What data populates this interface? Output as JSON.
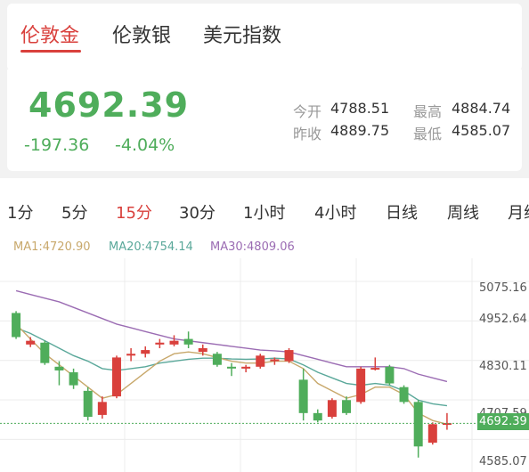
{
  "tabs": [
    {
      "label": "伦敦金",
      "active": true
    },
    {
      "label": "伦敦银",
      "active": false
    },
    {
      "label": "美元指数",
      "active": false
    }
  ],
  "quote": {
    "price": "4692.39",
    "change": "-197.36",
    "change_pct": "-4.04%",
    "open_label": "今开",
    "open": "4788.51",
    "prev_label": "昨收",
    "prev": "4889.75",
    "high_label": "最高",
    "high": "4884.74",
    "low_label": "最低",
    "low": "4585.07"
  },
  "periods": [
    {
      "label": "1分",
      "active": false
    },
    {
      "label": "5分",
      "active": false
    },
    {
      "label": "15分",
      "active": true
    },
    {
      "label": "30分",
      "active": false
    },
    {
      "label": "1小时",
      "active": false
    },
    {
      "label": "4小时",
      "active": false
    },
    {
      "label": "日线",
      "active": false
    },
    {
      "label": "周线",
      "active": false
    },
    {
      "label": "月线",
      "active": false
    }
  ],
  "ma": {
    "ma1": "MA1:4720.90",
    "ma20": "MA20:4754.14",
    "ma30": "MA30:4809.06"
  },
  "colors": {
    "up": "#d9403c",
    "down": "#4fad5b",
    "ma1": "#c8a86b",
    "ma20": "#5aa89a",
    "ma30": "#9b6cb3"
  },
  "chart_data": {
    "type": "candlestick",
    "y_ticks": [
      "5075.16",
      "4952.64",
      "4830.11",
      "4707.59",
      "4585.07"
    ],
    "current_price": "4692.39",
    "ylim": [
      4585.07,
      5075.16
    ],
    "candles": [
      {
        "o": 4990,
        "c": 4925,
        "h": 4995,
        "l": 4920
      },
      {
        "o": 4905,
        "c": 4915,
        "h": 4925,
        "l": 4898
      },
      {
        "o": 4910,
        "c": 4855,
        "h": 4915,
        "l": 4850
      },
      {
        "o": 4845,
        "c": 4835,
        "h": 4860,
        "l": 4795
      },
      {
        "o": 4830,
        "c": 4795,
        "h": 4840,
        "l": 4785
      },
      {
        "o": 4780,
        "c": 4710,
        "h": 4790,
        "l": 4700
      },
      {
        "o": 4715,
        "c": 4750,
        "h": 4765,
        "l": 4705
      },
      {
        "o": 4765,
        "c": 4870,
        "h": 4875,
        "l": 4760
      },
      {
        "o": 4875,
        "c": 4880,
        "h": 4895,
        "l": 4860
      },
      {
        "o": 4880,
        "c": 4890,
        "h": 4900,
        "l": 4870
      },
      {
        "o": 4905,
        "c": 4910,
        "h": 4920,
        "l": 4895
      },
      {
        "o": 4905,
        "c": 4915,
        "h": 4930,
        "l": 4900
      },
      {
        "o": 4920,
        "c": 4905,
        "h": 4940,
        "l": 4895
      },
      {
        "o": 4885,
        "c": 4895,
        "h": 4905,
        "l": 4875
      },
      {
        "o": 4880,
        "c": 4850,
        "h": 4885,
        "l": 4845
      },
      {
        "o": 4845,
        "c": 4842,
        "h": 4855,
        "l": 4820
      },
      {
        "o": 4840,
        "c": 4845,
        "h": 4850,
        "l": 4830
      },
      {
        "o": 4845,
        "c": 4875,
        "h": 4880,
        "l": 4840
      },
      {
        "o": 4860,
        "c": 4865,
        "h": 4870,
        "l": 4850
      },
      {
        "o": 4860,
        "c": 4890,
        "h": 4895,
        "l": 4855
      },
      {
        "o": 4810,
        "c": 4720,
        "h": 4840,
        "l": 4700
      },
      {
        "o": 4720,
        "c": 4700,
        "h": 4730,
        "l": 4695
      },
      {
        "o": 4710,
        "c": 4755,
        "h": 4760,
        "l": 4705
      },
      {
        "o": 4755,
        "c": 4720,
        "h": 4765,
        "l": 4715
      },
      {
        "o": 4750,
        "c": 4840,
        "h": 4845,
        "l": 4745
      },
      {
        "o": 4840,
        "c": 4842,
        "h": 4870,
        "l": 4835
      },
      {
        "o": 4845,
        "c": 4800,
        "h": 4850,
        "l": 4795
      },
      {
        "o": 4790,
        "c": 4750,
        "h": 4795,
        "l": 4745
      },
      {
        "o": 4750,
        "c": 4630,
        "h": 4755,
        "l": 4600
      },
      {
        "o": 4640,
        "c": 4690,
        "h": 4695,
        "l": 4635
      },
      {
        "o": 4690,
        "c": 4693,
        "h": 4720,
        "l": 4675
      }
    ],
    "ma1": [
      4960,
      4920,
      4880,
      4850,
      4820,
      4790,
      4760,
      4770,
      4800,
      4830,
      4860,
      4880,
      4885,
      4880,
      4870,
      4860,
      4855,
      4855,
      4860,
      4860,
      4840,
      4800,
      4780,
      4760,
      4770,
      4790,
      4790,
      4770,
      4720,
      4700,
      4690
    ],
    "ma20": [
      4950,
      4935,
      4915,
      4895,
      4875,
      4860,
      4840,
      4835,
      4840,
      4845,
      4855,
      4860,
      4865,
      4868,
      4868,
      4866,
      4865,
      4866,
      4868,
      4866,
      4850,
      4830,
      4815,
      4800,
      4795,
      4800,
      4795,
      4780,
      4755,
      4745,
      4740
    ],
    "ma30": [
      5050,
      5040,
      5030,
      5020,
      5005,
      4990,
      4975,
      4960,
      4950,
      4940,
      4930,
      4920,
      4915,
      4910,
      4905,
      4900,
      4895,
      4890,
      4888,
      4885,
      4875,
      4865,
      4855,
      4845,
      4845,
      4845,
      4845,
      4840,
      4825,
      4815,
      4805
    ]
  }
}
